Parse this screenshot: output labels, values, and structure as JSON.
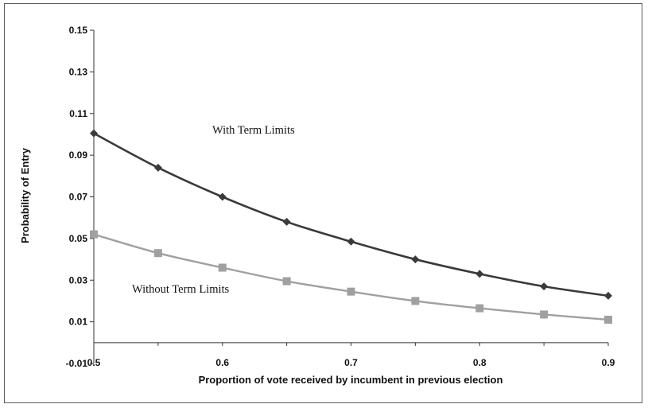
{
  "chart_data": {
    "type": "line",
    "xlabel": "Proportion of vote received by incumbent in previous election",
    "ylabel": "Probability of Entry",
    "xlim": [
      0.5,
      0.9
    ],
    "ylim": [
      -0.01,
      0.15
    ],
    "x_ticks": [
      "0.5",
      "0.6",
      "0.7",
      "0.8",
      "0.9"
    ],
    "y_ticks": [
      "0.15",
      "0.13",
      "0.11",
      "0.09",
      "0.07",
      "0.05",
      "0.03",
      "0.01",
      "-0.01"
    ],
    "grid": false,
    "x": [
      0.5,
      0.55,
      0.6,
      0.65,
      0.7,
      0.75,
      0.8,
      0.85,
      0.9
    ],
    "series": [
      {
        "label": "With Term Limits",
        "color": "#3a3a3a",
        "marker": "diamond",
        "values": [
          0.1005,
          0.084,
          0.07,
          0.058,
          0.0485,
          0.04,
          0.033,
          0.027,
          0.0225
        ]
      },
      {
        "label": "Without Term Limits",
        "color": "#a0a0a0",
        "marker": "square",
        "values": [
          0.052,
          0.043,
          0.036,
          0.0295,
          0.0245,
          0.02,
          0.0165,
          0.0135,
          0.011
        ]
      }
    ],
    "annotations": [
      "With Term Limits",
      "Without Term Limits"
    ]
  }
}
